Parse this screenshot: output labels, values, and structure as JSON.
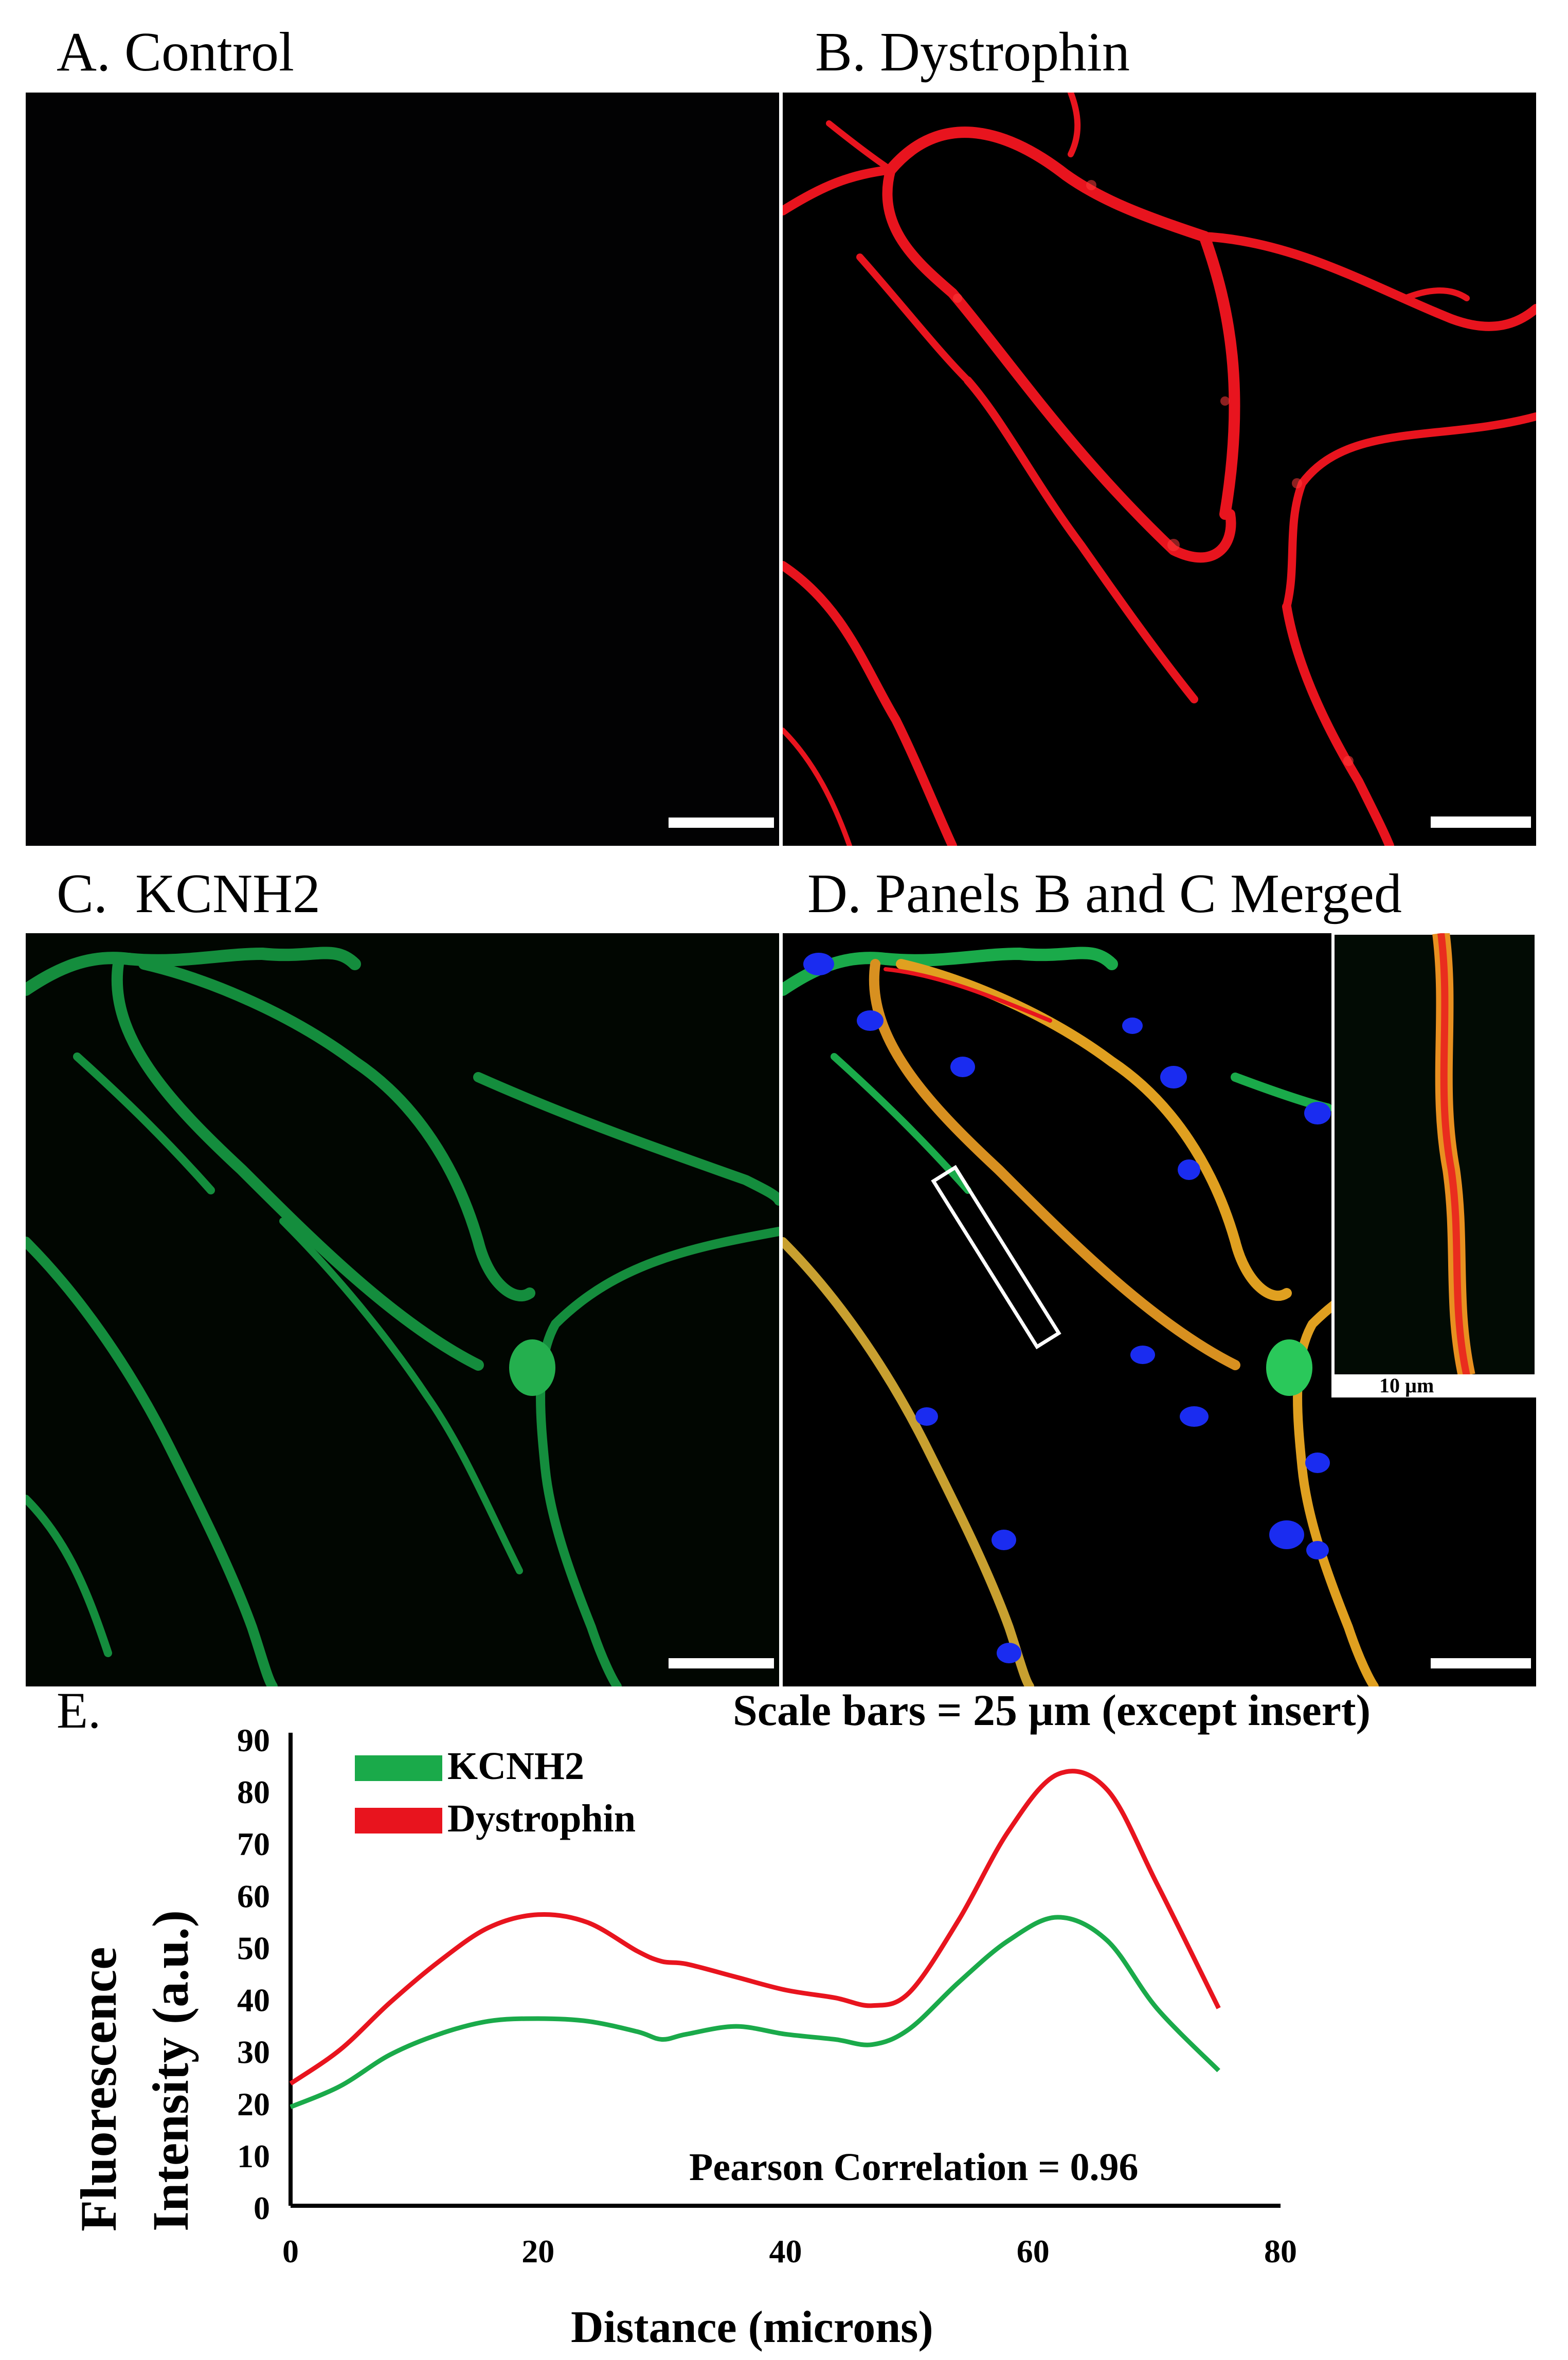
{
  "panels": {
    "a": {
      "label": "A. Control"
    },
    "b": {
      "label": "B. Dystrophin"
    },
    "c": {
      "label": "C.  KCNH2"
    },
    "d": {
      "label": "D. Panels B and C Merged",
      "insert_scale_label": "10 µm"
    }
  },
  "scale_note": "Scale bars = 25 µm (except insert)",
  "colors": {
    "dystrophin": "#e8141e",
    "kcnh2": "#1aaa4a",
    "nuclei": "#1a2cf0",
    "background": "#000000"
  },
  "chart_data": {
    "type": "line",
    "panel_label": "E.",
    "xlabel": "Distance (microns)",
    "ylabel_line1": "Fluorescence",
    "ylabel_line2": "Intensity (a.u.)",
    "xlim": [
      0,
      80
    ],
    "ylim": [
      0,
      90
    ],
    "xticks": [
      0,
      20,
      40,
      60,
      80
    ],
    "yticks": [
      0,
      10,
      20,
      30,
      40,
      50,
      60,
      70,
      80,
      90
    ],
    "annotation": "Pearson Correlation = 0.96",
    "legend_position": "top-left",
    "series": [
      {
        "name": "KCNH2",
        "color": "#1aaa4a",
        "x": [
          0,
          4,
          8,
          12,
          16,
          20,
          24,
          28,
          30,
          32,
          36,
          40,
          44,
          47,
          50,
          54,
          58,
          62,
          66,
          70,
          75
        ],
        "y": [
          19,
          23,
          29,
          33,
          35.5,
          36,
          35.5,
          33.5,
          32,
          33,
          34.5,
          33,
          32,
          31,
          34,
          43,
          51,
          55.5,
          51,
          38,
          26
        ]
      },
      {
        "name": "Dystrophin",
        "color": "#e8141e",
        "x": [
          0,
          4,
          8,
          12,
          16,
          20,
          24,
          28,
          30,
          32,
          36,
          40,
          44,
          47,
          50,
          54,
          58,
          62,
          66,
          70,
          75
        ],
        "y": [
          23.5,
          30,
          39,
          47,
          53.5,
          56,
          54.5,
          49,
          47,
          46.5,
          44,
          41.5,
          40,
          38.5,
          41,
          55,
          72,
          83,
          80,
          62,
          38
        ]
      }
    ]
  }
}
